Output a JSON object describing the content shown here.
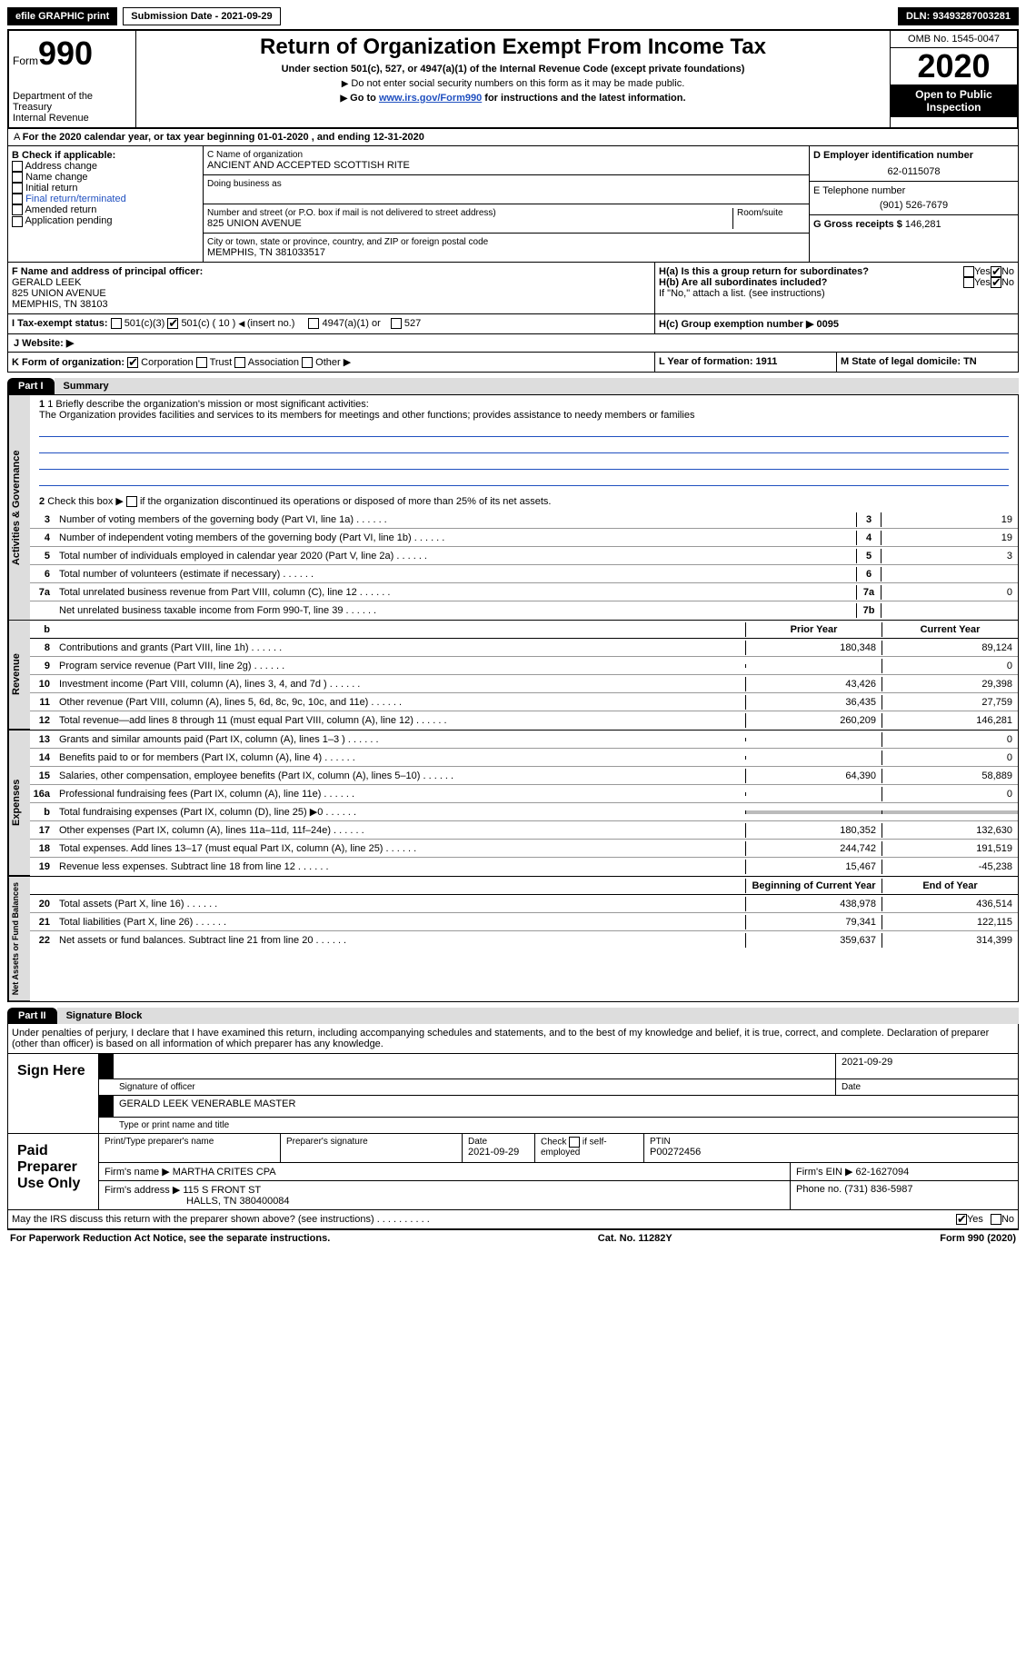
{
  "topbar": {
    "efile": "efile GRAPHIC print",
    "subdate": "Submission Date - 2021-09-29",
    "dln": "DLN: 93493287003281"
  },
  "header": {
    "form": "Form",
    "num": "990",
    "dept": "Department of the Treasury",
    "irs": "Internal Revenue",
    "title": "Return of Organization Exempt From Income Tax",
    "sub1": "Under section 501(c), 527, or 4947(a)(1) of the Internal Revenue Code (except private foundations)",
    "sub2": "Do not enter social security numbers on this form as it may be made public.",
    "sub3a": "Go to ",
    "sub3link": "www.irs.gov/Form990",
    "sub3b": " for instructions and the latest information.",
    "omb": "OMB No. 1545-0047",
    "year": "2020",
    "open": "Open to Public Inspection"
  },
  "lineA": "For the 2020 calendar year, or tax year beginning 01-01-2020   , and ending 12-31-2020",
  "boxB": {
    "label": "B Check if applicable:",
    "items": [
      "Address change",
      "Name change",
      "Initial return",
      "Final return/terminated",
      "Amended return",
      "Application pending"
    ]
  },
  "boxC": {
    "l1": "C Name of organization",
    "name": "ANCIENT AND ACCEPTED SCOTTISH RITE",
    "dba": "Doing business as",
    "addrlabel": "Number and street (or P.O. box if mail is not delivered to street address)",
    "room": "Room/suite",
    "addr": "825 UNION AVENUE",
    "citylabel": "City or town, state or province, country, and ZIP or foreign postal code",
    "city": "MEMPHIS, TN  381033517"
  },
  "boxD": {
    "label": "D Employer identification number",
    "val": "62-0115078"
  },
  "boxE": {
    "label": "E Telephone number",
    "val": "(901) 526-7679"
  },
  "boxG": {
    "label": "G Gross receipts $",
    "val": "146,281"
  },
  "boxF": {
    "label": "F  Name and address of principal officer:",
    "line1": "GERALD LEEK",
    "line2": "825 UNION AVENUE",
    "line3": "MEMPHIS, TN  38103"
  },
  "boxH": {
    "ha": "H(a)  Is this a group return for subordinates?",
    "hb": "H(b)  Are all subordinates included?",
    "hnote": "If \"No,\" attach a list. (see instructions)",
    "hc": "H(c)  Group exemption number ▶   0095",
    "yes": "Yes",
    "no": "No"
  },
  "lineI": {
    "label": "I    Tax-exempt status:",
    "o1": "501(c)(3)",
    "o2a": "501(c) ( 10 ) ",
    "o2b": "(insert no.)",
    "o3": "4947(a)(1) or",
    "o4": "527"
  },
  "lineJ": "J   Website: ▶",
  "lineK": {
    "label": "K Form of organization:",
    "o1": "Corporation",
    "o2": "Trust",
    "o3": "Association",
    "o4": "Other ▶"
  },
  "lineL": "L Year of formation: 1911",
  "lineM": "M State of legal domicile: TN",
  "part1": {
    "label": "Part I",
    "title": "Summary"
  },
  "gov": {
    "q1": "1  Briefly describe the organization's mission or most significant activities:",
    "q1txt": "The Organization provides facilities and services to its members for meetings and other functions; provides assistance to needy members or families",
    "q2": "Check this box ▶      if the organization discontinued its operations or disposed of more than 25% of its net assets.",
    "lines": [
      {
        "n": "3",
        "t": "Number of voting members of the governing body (Part VI, line 1a)",
        "b": "3",
        "v": "19"
      },
      {
        "n": "4",
        "t": "Number of independent voting members of the governing body (Part VI, line 1b)",
        "b": "4",
        "v": "19"
      },
      {
        "n": "5",
        "t": "Total number of individuals employed in calendar year 2020 (Part V, line 2a)",
        "b": "5",
        "v": "3"
      },
      {
        "n": "6",
        "t": "Total number of volunteers (estimate if necessary)",
        "b": "6",
        "v": ""
      },
      {
        "n": "7a",
        "t": "Total unrelated business revenue from Part VIII, column (C), line 12",
        "b": "7a",
        "v": "0"
      },
      {
        "n": "",
        "t": "Net unrelated business taxable income from Form 990-T, line 39",
        "b": "7b",
        "v": ""
      }
    ]
  },
  "hdrs": {
    "prior": "Prior Year",
    "curr": "Current Year",
    "boy": "Beginning of Current Year",
    "eoy": "End of Year"
  },
  "rev": [
    {
      "n": "8",
      "t": "Contributions and grants (Part VIII, line 1h)",
      "p": "180,348",
      "c": "89,124"
    },
    {
      "n": "9",
      "t": "Program service revenue (Part VIII, line 2g)",
      "p": "",
      "c": "0"
    },
    {
      "n": "10",
      "t": "Investment income (Part VIII, column (A), lines 3, 4, and 7d )",
      "p": "43,426",
      "c": "29,398"
    },
    {
      "n": "11",
      "t": "Other revenue (Part VIII, column (A), lines 5, 6d, 8c, 9c, 10c, and 11e)",
      "p": "36,435",
      "c": "27,759"
    },
    {
      "n": "12",
      "t": "Total revenue—add lines 8 through 11 (must equal Part VIII, column (A), line 12)",
      "p": "260,209",
      "c": "146,281"
    }
  ],
  "exp": [
    {
      "n": "13",
      "t": "Grants and similar amounts paid (Part IX, column (A), lines 1–3 )",
      "p": "",
      "c": "0"
    },
    {
      "n": "14",
      "t": "Benefits paid to or for members (Part IX, column (A), line 4)",
      "p": "",
      "c": "0"
    },
    {
      "n": "15",
      "t": "Salaries, other compensation, employee benefits (Part IX, column (A), lines 5–10)",
      "p": "64,390",
      "c": "58,889"
    },
    {
      "n": "16a",
      "t": "Professional fundraising fees (Part IX, column (A), line 11e)",
      "p": "",
      "c": "0"
    },
    {
      "n": "b",
      "t": "Total fundraising expenses (Part IX, column (D), line 25) ▶0",
      "p": "GRAY",
      "c": "GRAY"
    },
    {
      "n": "17",
      "t": "Other expenses (Part IX, column (A), lines 11a–11d, 11f–24e)",
      "p": "180,352",
      "c": "132,630"
    },
    {
      "n": "18",
      "t": "Total expenses. Add lines 13–17 (must equal Part IX, column (A), line 25)",
      "p": "244,742",
      "c": "191,519"
    },
    {
      "n": "19",
      "t": "Revenue less expenses. Subtract line 18 from line 12",
      "p": "15,467",
      "c": "-45,238"
    }
  ],
  "net": [
    {
      "n": "20",
      "t": "Total assets (Part X, line 16)",
      "p": "438,978",
      "c": "436,514"
    },
    {
      "n": "21",
      "t": "Total liabilities (Part X, line 26)",
      "p": "79,341",
      "c": "122,115"
    },
    {
      "n": "22",
      "t": "Net assets or fund balances. Subtract line 21 from line 20",
      "p": "359,637",
      "c": "314,399"
    }
  ],
  "part2": {
    "label": "Part II",
    "title": "Signature Block"
  },
  "perjury": "Under penalties of perjury, I declare that I have examined this return, including accompanying schedules and statements, and to the best of my knowledge and belief, it is true, correct, and complete. Declaration of preparer (other than officer) is based on all information of which preparer has any knowledge.",
  "sign": {
    "here": "Sign Here",
    "sigoff": "Signature of officer",
    "date": "Date",
    "dateval": "2021-09-29",
    "name": "GERALD LEEK VENERABLE MASTER",
    "typelabel": "Type or print name and title"
  },
  "prep": {
    "label": "Paid Preparer Use Only",
    "h1": "Print/Type preparer's name",
    "h2": "Preparer's signature",
    "h3": "Date",
    "h3v": "2021-09-29",
    "h4": "Check       if self-employed",
    "h5": "PTIN",
    "h5v": "P00272456",
    "firm": "Firm's name    ▶ MARTHA CRITES CPA",
    "ein": "Firm's EIN ▶ 62-1627094",
    "addr": "Firm's address ▶ 115 S FRONT ST",
    "addr2": "HALLS, TN  380400084",
    "phone": "Phone no. (731) 836-5987"
  },
  "may": "May the IRS discuss this return with the preparer shown above? (see instructions)",
  "foot": {
    "l": "For Paperwork Reduction Act Notice, see the separate instructions.",
    "m": "Cat. No. 11282Y",
    "r": "Form 990 (2020)"
  },
  "sidelabels": {
    "gov": "Activities & Governance",
    "rev": "Revenue",
    "exp": "Expenses",
    "net": "Net Assets or Fund Balances"
  }
}
